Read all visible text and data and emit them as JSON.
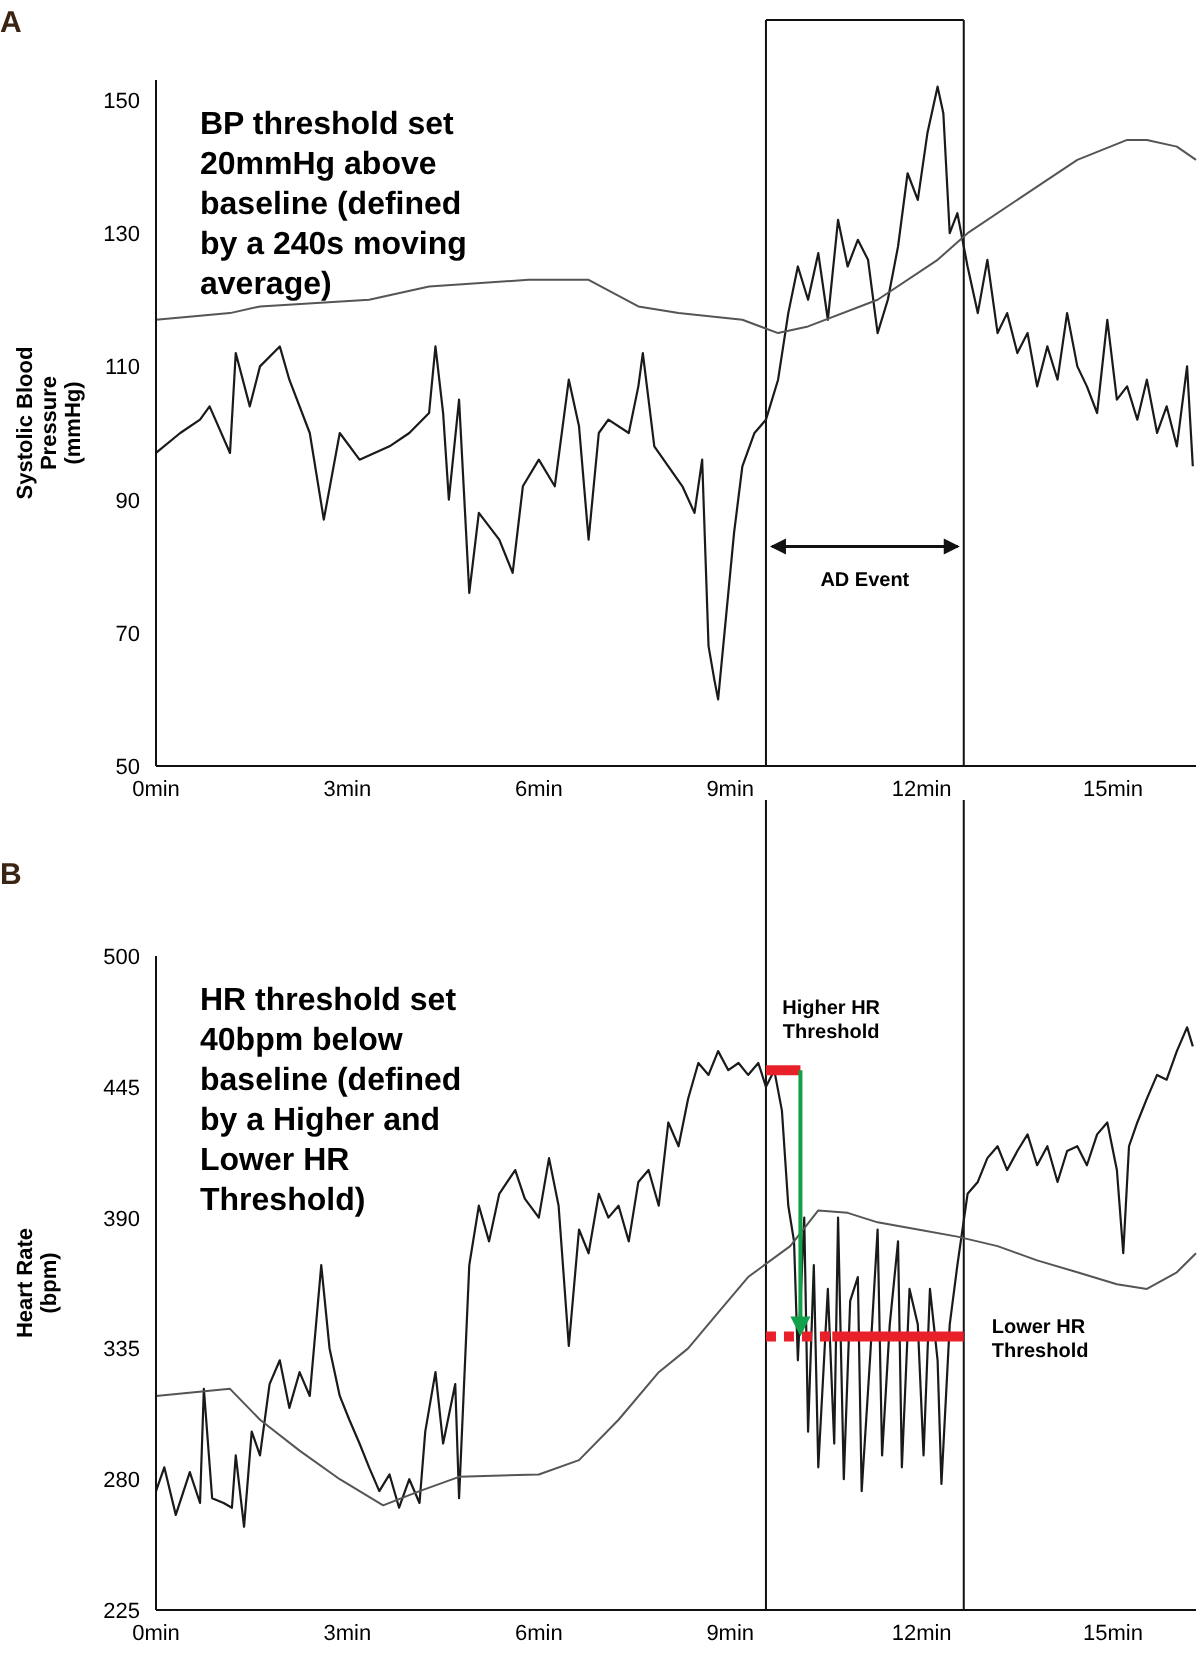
{
  "chart_data": [
    {
      "type": "line",
      "title": "A",
      "ylabel": "Systolic Blood Pressure (mmHg)",
      "xlim": [
        0,
        16.3
      ],
      "ylim": [
        50,
        153
      ],
      "xticks": [
        {
          "value": 0,
          "label": "0min"
        },
        {
          "value": 3,
          "label": "3min"
        },
        {
          "value": 6,
          "label": "6min"
        },
        {
          "value": 9,
          "label": "9min"
        },
        {
          "value": 12,
          "label": "12min"
        },
        {
          "value": 15,
          "label": "15min"
        }
      ],
      "yticks": [
        50,
        70,
        90,
        110,
        130,
        150
      ],
      "legend": false,
      "grid": false,
      "annotations": [
        "BP threshold set 20mmHg above baseline (defined by a 240s moving average)",
        "AD Event"
      ],
      "ref_lines": [
        {
          "axis": "x",
          "value": 9.56
        },
        {
          "axis": "x",
          "value": 12.66
        }
      ],
      "series": [
        {
          "color": "#1a1a1a",
          "x": [
            0,
            0.38,
            0.69,
            0.84,
            1.16,
            1.25,
            1.47,
            1.63,
            1.94,
            2.09,
            2.41,
            2.63,
            2.88,
            3.19,
            3.66,
            3.97,
            4.28,
            4.38,
            4.5,
            4.59,
            4.75,
            4.91,
            5.06,
            5.38,
            5.59,
            5.75,
            6.0,
            6.25,
            6.47,
            6.63,
            6.78,
            6.94,
            7.09,
            7.41,
            7.56,
            7.63,
            7.81,
            8.03,
            8.25,
            8.44,
            8.56,
            8.66,
            8.75,
            8.81,
            8.91,
            9.06,
            9.19,
            9.38,
            9.56,
            9.75,
            9.91,
            10.06,
            10.22,
            10.38,
            10.53,
            10.69,
            10.84,
            11.0,
            11.16,
            11.31,
            11.47,
            11.63,
            11.78,
            11.94,
            12.09,
            12.25,
            12.34,
            12.44,
            12.56,
            12.72,
            12.88,
            13.03,
            13.19,
            13.34,
            13.5,
            13.66,
            13.81,
            13.97,
            14.13,
            14.28,
            14.44,
            14.59,
            14.75,
            14.91,
            15.06,
            15.22,
            15.38,
            15.53,
            15.69,
            15.84,
            16.0,
            16.16,
            16.25
          ],
          "values": [
            97,
            100,
            102,
            104,
            97,
            112,
            104,
            110,
            113,
            108,
            100,
            87,
            100,
            96,
            98,
            100,
            103,
            113,
            103,
            90,
            105,
            76,
            88,
            84,
            79,
            92,
            96,
            92,
            108,
            101,
            84,
            100,
            102,
            100,
            107,
            112,
            98,
            95,
            92,
            88,
            96,
            68,
            63,
            60,
            70,
            85,
            95,
            100,
            102,
            108,
            118,
            125,
            120,
            127,
            117,
            132,
            125,
            129,
            126,
            115,
            120,
            128,
            139,
            135,
            145,
            152,
            148,
            130,
            133,
            125,
            118,
            126,
            115,
            118,
            112,
            115,
            107,
            113,
            108,
            118,
            110,
            107,
            103,
            117,
            105,
            107,
            102,
            108,
            100,
            104,
            98,
            110,
            95
          ]
        },
        {
          "color": "#555555",
          "x": [
            0,
            1.16,
            1.63,
            3.34,
            4.28,
            5.84,
            6.78,
            7.56,
            8.19,
            9.19,
            9.75,
            10.22,
            11.31,
            12.25,
            12.72,
            13.81,
            14.44,
            15.22,
            15.53,
            16.0,
            16.3
          ],
          "values": [
            117,
            118,
            119,
            120,
            122,
            123,
            123,
            119,
            118,
            117,
            115,
            116,
            120,
            126,
            130,
            137,
            141,
            144,
            144,
            143,
            141
          ]
        }
      ]
    },
    {
      "type": "line",
      "title": "B",
      "ylabel": "Heart Rate (bpm)",
      "xlim": [
        0,
        16.3
      ],
      "ylim": [
        225,
        500
      ],
      "xticks": [
        {
          "value": 0,
          "label": "0min"
        },
        {
          "value": 3,
          "label": "3min"
        },
        {
          "value": 6,
          "label": "6min"
        },
        {
          "value": 9,
          "label": "9min"
        },
        {
          "value": 12,
          "label": "12min"
        },
        {
          "value": 15,
          "label": "15min"
        }
      ],
      "yticks": [
        225,
        280,
        335,
        390,
        445,
        500
      ],
      "legend": false,
      "grid": false,
      "annotations": [
        "HR threshold set 40bpm below baseline (defined by a Higher and Lower HR Threshold)"
      ],
      "ref_lines": [
        {
          "axis": "x",
          "value": 9.56
        },
        {
          "axis": "x",
          "value": 12.66
        }
      ],
      "series": [
        {
          "color": "#1a1a1a",
          "x": [
            0,
            0.13,
            0.31,
            0.53,
            0.69,
            0.75,
            0.88,
            1.06,
            1.19,
            1.25,
            1.38,
            1.5,
            1.63,
            1.78,
            1.94,
            2.09,
            2.25,
            2.41,
            2.59,
            2.72,
            2.88,
            3.03,
            3.19,
            3.34,
            3.5,
            3.66,
            3.81,
            3.97,
            4.13,
            4.22,
            4.38,
            4.5,
            4.69,
            4.75,
            4.91,
            5.06,
            5.22,
            5.38,
            5.63,
            5.78,
            6.0,
            6.16,
            6.31,
            6.47,
            6.63,
            6.78,
            6.94,
            7.09,
            7.25,
            7.41,
            7.56,
            7.72,
            7.88,
            8.03,
            8.19,
            8.34,
            8.5,
            8.66,
            8.81,
            8.97,
            9.13,
            9.28,
            9.44,
            9.56,
            9.69,
            9.81,
            9.91,
            10.0,
            10.06,
            10.16,
            10.22,
            10.31,
            10.38,
            10.53,
            10.63,
            10.69,
            10.78,
            10.88,
            11.0,
            11.06,
            11.19,
            11.31,
            11.38,
            11.5,
            11.63,
            11.69,
            11.81,
            11.94,
            12.03,
            12.13,
            12.25,
            12.31,
            12.44,
            12.56,
            12.72,
            12.88,
            13.03,
            13.19,
            13.34,
            13.5,
            13.66,
            13.81,
            13.97,
            14.13,
            14.28,
            14.44,
            14.59,
            14.75,
            14.91,
            15.06,
            15.16,
            15.25,
            15.38,
            15.53,
            15.69,
            15.84,
            16.0,
            16.16,
            16.25
          ],
          "values": [
            275,
            285,
            265,
            283,
            270,
            318,
            272,
            270,
            268,
            290,
            260,
            300,
            290,
            320,
            330,
            310,
            325,
            315,
            370,
            335,
            315,
            305,
            295,
            285,
            275,
            282,
            268,
            280,
            270,
            300,
            325,
            295,
            320,
            272,
            370,
            395,
            380,
            400,
            410,
            398,
            390,
            415,
            395,
            336,
            385,
            375,
            400,
            390,
            395,
            380,
            405,
            410,
            395,
            430,
            420,
            440,
            455,
            450,
            460,
            452,
            455,
            450,
            455,
            445,
            452,
            435,
            395,
            380,
            330,
            390,
            300,
            370,
            285,
            360,
            295,
            390,
            280,
            355,
            365,
            275,
            330,
            385,
            290,
            345,
            380,
            285,
            360,
            345,
            290,
            360,
            330,
            278,
            345,
            370,
            400,
            405,
            415,
            420,
            410,
            418,
            425,
            412,
            420,
            405,
            418,
            420,
            412,
            425,
            430,
            410,
            375,
            420,
            430,
            440,
            450,
            448,
            460,
            470,
            462
          ]
        },
        {
          "color": "#555555",
          "x": [
            0,
            1.16,
            1.63,
            2.25,
            2.88,
            3.56,
            4.13,
            4.75,
            6.0,
            6.63,
            7.25,
            7.88,
            8.34,
            8.81,
            9.28,
            9.94,
            10.38,
            10.84,
            11.31,
            11.94,
            12.56,
            13.19,
            13.81,
            14.44,
            15.06,
            15.53,
            16.0,
            16.3
          ],
          "values": [
            315,
            318,
            305,
            292,
            280,
            269,
            275,
            281,
            282,
            288,
            305,
            325,
            335,
            350,
            365,
            378,
            393,
            392,
            388,
            385,
            382,
            378,
            372,
            367,
            362,
            360,
            367,
            375
          ]
        },
        {
          "name": "Higher HR Threshold",
          "color": "#e8202a",
          "x": [
            9.56,
            10.1
          ],
          "values": [
            452,
            452
          ]
        },
        {
          "name": "Lower HR Threshold",
          "color": "#e8202a",
          "x": [
            10.6,
            12.66
          ],
          "values": [
            340,
            340
          ]
        },
        {
          "color": "#e8202a",
          "line_style": "dashed",
          "x": [
            9.56,
            10.6
          ],
          "values": [
            340,
            340
          ]
        }
      ]
    }
  ]
}
